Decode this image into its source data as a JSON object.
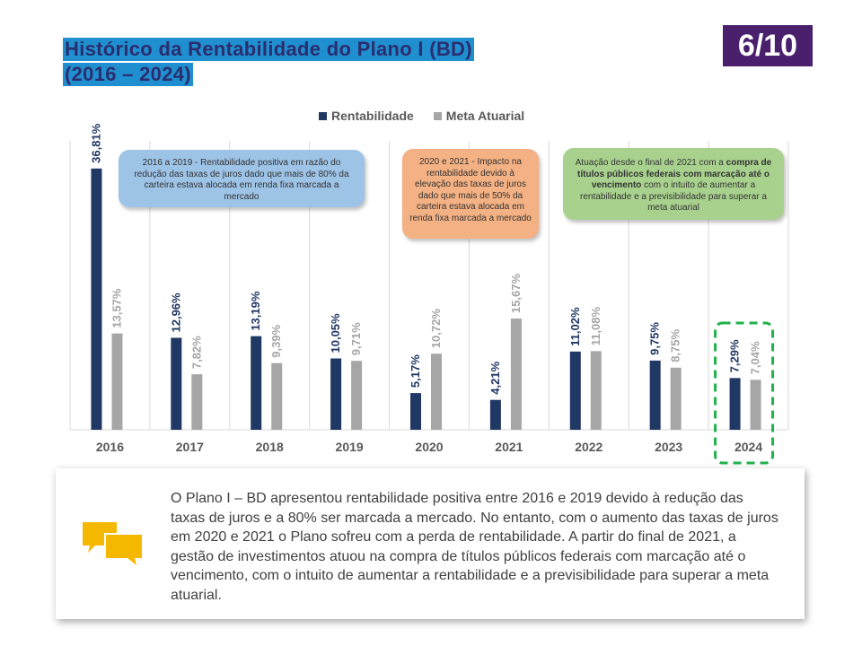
{
  "header": {
    "title_line1": "Histórico da Rentabilidade do Plano I (BD)",
    "title_line2": "(2016 –  2024)",
    "page_indicator": "6/10"
  },
  "legend": {
    "series1": "Rentabilidade",
    "series2": "Meta Atuarial"
  },
  "notes": {
    "note1": "2016 a 2019 - Rentabilidade positiva em razão do redução das taxas de juros dado que mais de 80% da carteira estava alocada em renda fixa marcada a mercado",
    "note2": "2020 e 2021 - Impacto na rentabilidade devido à elevação das taxas de juros dado que mais de 50% da carteira estava alocada em renda fixa marcada a mercado",
    "note3_pre": "Atuação desde o final de 2021 com a ",
    "note3_bold": "compra de títulos públicos federais com marcação até o vencimento",
    "note3_post": " com o intuito de aumentar a rentabilidade e a previsibilidade para superar a meta atuarial"
  },
  "summary": {
    "text": "O Plano I – BD apresentou rentabilidade positiva entre 2016 e 2019 devido à redução das taxas de juros e a 80% ser marcada a mercado. No entanto, com o aumento das taxas de juros em 2020 e 2021 o Plano sofreu com a perda de rentabilidade. A partir do final de 2021, a gestão de investimentos atuou na compra de títulos públicos federais com marcação até o vencimento, com o intuito de aumentar a rentabilidade e a previsibilidade para superar a meta atuarial.",
    "icon": "chat-bubbles-icon"
  },
  "colors": {
    "rentabilidade": "#203864",
    "meta_atuarial": "#a6a6a6",
    "highlight": "#22b14c",
    "title_bg": "#1f8fd0",
    "badge_bg": "#4a1f6b"
  },
  "chart_data": {
    "type": "bar",
    "categories": [
      "2016",
      "2017",
      "2018",
      "2019",
      "2020",
      "2021",
      "2022",
      "2023",
      "2024"
    ],
    "series": [
      {
        "name": "Rentabilidade",
        "values": [
          36.81,
          12.96,
          13.19,
          10.05,
          5.17,
          4.21,
          11.02,
          9.75,
          7.29
        ],
        "labels": [
          "36,81%",
          "12,96%",
          "13,19%",
          "10,05%",
          "5,17%",
          "4,21%",
          "11,02%",
          "9,75%",
          "7,29%"
        ]
      },
      {
        "name": "Meta Atuarial",
        "values": [
          13.57,
          7.82,
          9.39,
          9.71,
          10.72,
          15.67,
          11.08,
          8.75,
          7.04
        ],
        "labels": [
          "13,57%",
          "7,82%",
          "9,39%",
          "9,71%",
          "10,72%",
          "15,67%",
          "11,08%",
          "8,75%",
          "7,04%"
        ]
      }
    ],
    "highlighted_category": "2024",
    "legend_position": "top",
    "grid": "vertical"
  }
}
